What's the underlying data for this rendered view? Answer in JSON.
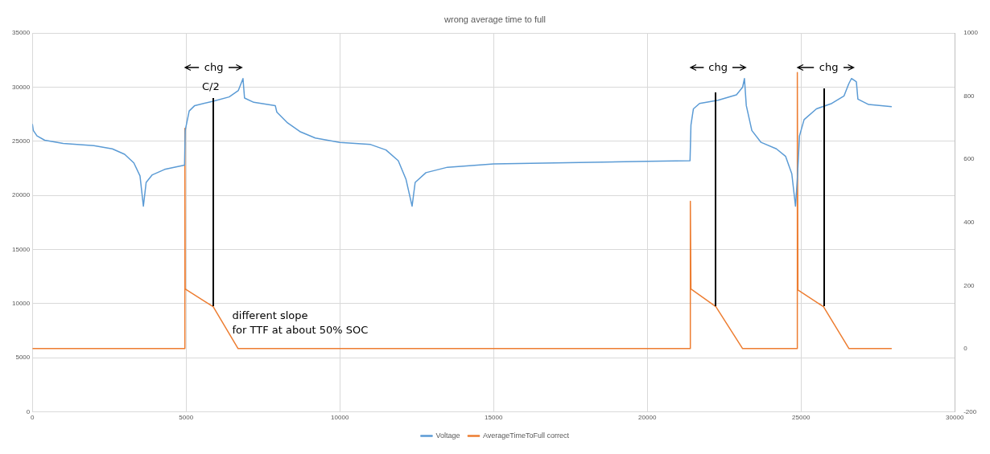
{
  "chart_data": {
    "type": "line",
    "title": "wrong average time to full",
    "xlim": [
      0,
      30000
    ],
    "xticks": [
      0,
      5000,
      10000,
      15000,
      20000,
      25000,
      30000
    ],
    "ylim": [
      0,
      35000
    ],
    "yticks": [
      0,
      5000,
      10000,
      15000,
      20000,
      25000,
      30000,
      35000
    ],
    "y2lim": [
      -200,
      1000
    ],
    "y2ticks": [
      -200,
      0,
      200,
      400,
      600,
      800,
      1000
    ],
    "grid": true,
    "legend": "bottom",
    "marker": "none",
    "series": [
      {
        "name": "Voltage",
        "color": "#5b9bd5",
        "axis": "y",
        "x": [
          0,
          30,
          150,
          400,
          1000,
          2000,
          2600,
          3000,
          3300,
          3500,
          3610,
          3700,
          3900,
          4300,
          4950,
          4970,
          5100,
          5280,
          5880,
          6400,
          6700,
          6850,
          6900,
          7200,
          7900,
          7950,
          8300,
          8700,
          9200,
          10000,
          11000,
          11500,
          11900,
          12150,
          12350,
          12450,
          12800,
          13500,
          15000,
          17000,
          20000,
          21390,
          21420,
          21500,
          21700,
          22300,
          22900,
          23100,
          23160,
          23220,
          23400,
          23700,
          24200,
          24500,
          24700,
          24820,
          24880,
          24950,
          25100,
          25500,
          26000,
          26400,
          26550,
          26640,
          26750,
          26800,
          26850,
          27200,
          27950
        ],
        "values": [
          26600,
          26000,
          25500,
          25100,
          24800,
          24600,
          24300,
          23800,
          23000,
          21800,
          19000,
          21200,
          21900,
          22400,
          22800,
          26000,
          27800,
          28300,
          28700,
          29100,
          29700,
          30800,
          29000,
          28600,
          28300,
          27700,
          26700,
          25900,
          25300,
          24900,
          24700,
          24200,
          23200,
          21500,
          19000,
          21200,
          22100,
          22600,
          22900,
          23000,
          23150,
          23200,
          26500,
          28000,
          28500,
          28800,
          29300,
          30000,
          30800,
          28300,
          26000,
          24900,
          24300,
          23600,
          22000,
          19000,
          21500,
          25500,
          27000,
          28000,
          28500,
          29200,
          30300,
          30800,
          30600,
          30500,
          28900,
          28400,
          28200
        ]
      },
      {
        "name": "AverageTimeToFull correct",
        "color": "#ed7d31",
        "axis": "y2",
        "x": [
          0,
          4950,
          4960,
          4970,
          5880,
          6690,
          21390,
          21400,
          21420,
          22230,
          23100,
          24870,
          24880,
          24900,
          25730,
          26560,
          27950
        ],
        "values": [
          0,
          0,
          698,
          189,
          133,
          0,
          0,
          467,
          189,
          133,
          0,
          0,
          875,
          186,
          133,
          0,
          0
        ]
      }
    ],
    "annotations": [
      "chg",
      "C/2",
      "different slope\nfor TTF at about 50% SOC",
      "chg",
      "chg"
    ]
  }
}
